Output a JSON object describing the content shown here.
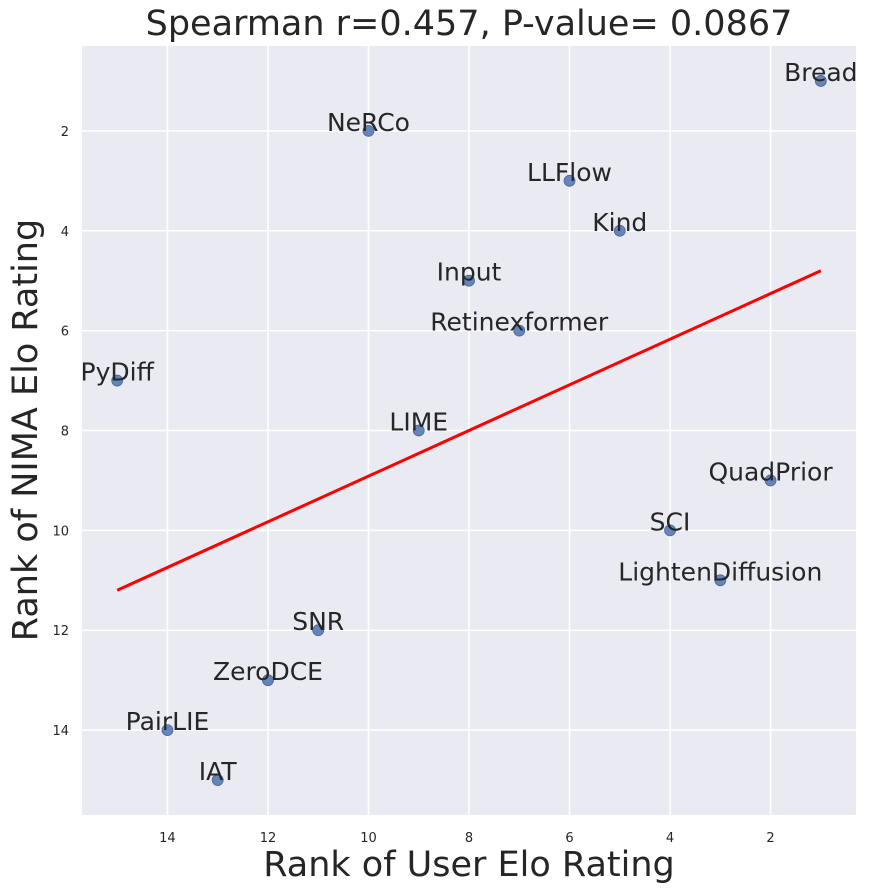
{
  "chart_data": {
    "type": "scatter",
    "title": "Spearman r=0.457, P-value= 0.0867",
    "xlabel": "Rank of User Elo Rating",
    "ylabel": "Rank of NIMA Elo Rating",
    "xlim": [
      15.7,
      0.3
    ],
    "ylim": [
      15.7,
      0.3
    ],
    "xticks": [
      14,
      12,
      10,
      8,
      6,
      4,
      2
    ],
    "yticks": [
      2,
      4,
      6,
      8,
      10,
      12,
      14
    ],
    "grid": true,
    "points": [
      {
        "name": "Bread",
        "x": 1,
        "y": 1
      },
      {
        "name": "NeRCo",
        "x": 10,
        "y": 2
      },
      {
        "name": "LLFlow",
        "x": 6,
        "y": 3
      },
      {
        "name": "Kind",
        "x": 5,
        "y": 4
      },
      {
        "name": "Input",
        "x": 8,
        "y": 5
      },
      {
        "name": "Retinexformer",
        "x": 7,
        "y": 6
      },
      {
        "name": "PyDiff",
        "x": 15,
        "y": 7
      },
      {
        "name": "LIME",
        "x": 9,
        "y": 8
      },
      {
        "name": "QuadPrior",
        "x": 2,
        "y": 9
      },
      {
        "name": "SCI",
        "x": 4,
        "y": 10
      },
      {
        "name": "LightenDiffusion",
        "x": 3,
        "y": 11
      },
      {
        "name": "SNR",
        "x": 11,
        "y": 12
      },
      {
        "name": "ZeroDCE",
        "x": 12,
        "y": 13
      },
      {
        "name": "PairLIE",
        "x": 14,
        "y": 14
      },
      {
        "name": "IAT",
        "x": 13,
        "y": 15
      }
    ],
    "fit_line": {
      "x": [
        15,
        1
      ],
      "y": [
        11.2,
        4.8
      ]
    },
    "colors": {
      "background": "#eaeaf2",
      "grid": "#ffffff",
      "point": "#4c72b0",
      "fit": "#ff0000",
      "text": "#262626"
    }
  }
}
